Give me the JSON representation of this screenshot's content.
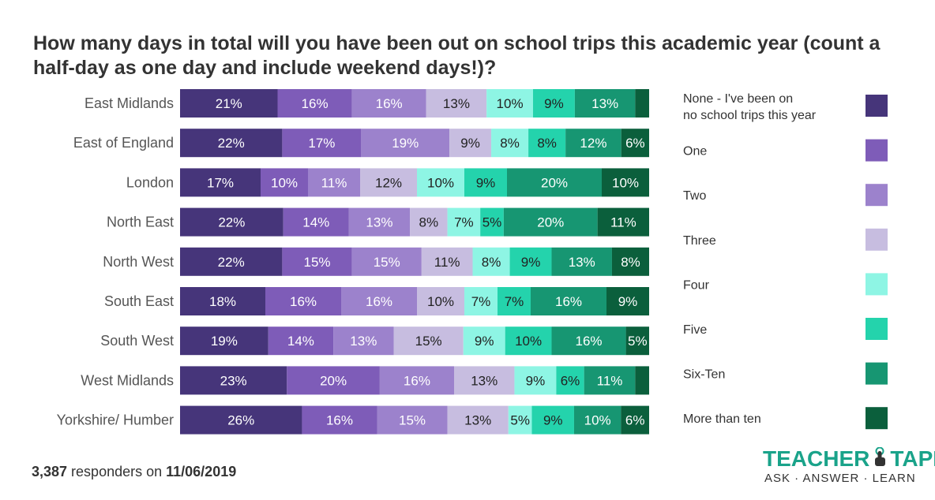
{
  "chart_data": {
    "type": "bar",
    "orientation": "horizontal",
    "stacked": true,
    "title": "How many days in total will you have been out on school trips this academic year (count a half-day as one day and include weekend days!)?",
    "categories": [
      "East Midlands",
      "East of England",
      "London",
      "North East",
      "North West",
      "South East",
      "South West",
      "West Midlands",
      "Yorkshire/ Humber"
    ],
    "series": [
      {
        "name": "None - I've been on no school trips this year",
        "color": "#46357a",
        "values": [
          21,
          22,
          17,
          22,
          22,
          18,
          19,
          23,
          26
        ]
      },
      {
        "name": "One",
        "color": "#7e5cb8",
        "values": [
          16,
          17,
          10,
          14,
          15,
          16,
          14,
          20,
          16
        ]
      },
      {
        "name": "Two",
        "color": "#9c82cc",
        "values": [
          16,
          19,
          11,
          13,
          15,
          16,
          13,
          16,
          15
        ]
      },
      {
        "name": "Three",
        "color": "#c7bde0",
        "values": [
          13,
          9,
          12,
          8,
          11,
          10,
          15,
          13,
          13
        ]
      },
      {
        "name": "Four",
        "color": "#8ef5e4",
        "values": [
          10,
          8,
          10,
          7,
          8,
          7,
          9,
          9,
          5
        ]
      },
      {
        "name": "Five",
        "color": "#24d3ac",
        "values": [
          9,
          8,
          9,
          5,
          9,
          7,
          10,
          6,
          9
        ]
      },
      {
        "name": "Six-Ten",
        "color": "#179672",
        "values": [
          13,
          12,
          20,
          20,
          13,
          16,
          16,
          11,
          10
        ]
      },
      {
        "name": "More than ten",
        "color": "#0b5f3c",
        "values": [
          3,
          6,
          10,
          11,
          8,
          9,
          5,
          3,
          6
        ]
      }
    ],
    "value_labels": [
      [
        "21%",
        "16%",
        "16%",
        "13%",
        "10%",
        "9%",
        "13%",
        ""
      ],
      [
        "22%",
        "17%",
        "19%",
        "9%",
        "8%",
        "8%",
        "12%",
        "6%"
      ],
      [
        "17%",
        "10%",
        "11%",
        "12%",
        "10%",
        "9%",
        "20%",
        "10%"
      ],
      [
        "22%",
        "14%",
        "13%",
        "8%",
        "7%",
        "5%",
        "20%",
        "11%"
      ],
      [
        "22%",
        "15%",
        "15%",
        "11%",
        "8%",
        "9%",
        "13%",
        "8%"
      ],
      [
        "18%",
        "16%",
        "16%",
        "10%",
        "7%",
        "7%",
        "16%",
        "9%"
      ],
      [
        "19%",
        "14%",
        "13%",
        "15%",
        "9%",
        "10%",
        "16%",
        "5%"
      ],
      [
        "23%",
        "20%",
        "16%",
        "13%",
        "9%",
        "6%",
        "11%",
        ""
      ],
      [
        "26%",
        "16%",
        "15%",
        "13%",
        "5%",
        "9%",
        "10%",
        "6%"
      ]
    ],
    "label_colors": [
      "#ffffff",
      "#ffffff",
      "#ffffff",
      "#222222",
      "#222222",
      "#222222",
      "#ffffff",
      "#ffffff"
    ],
    "legend_position": "right",
    "grid": false
  },
  "footer": {
    "count": "3,387",
    "middle": " responders on ",
    "date": "11/06/2019"
  },
  "logo": {
    "left_word": "TEACHER",
    "right_word": "TAPP",
    "tagline": "ASK · ANSWER · LEARN",
    "icon": "tap-hand-icon"
  }
}
